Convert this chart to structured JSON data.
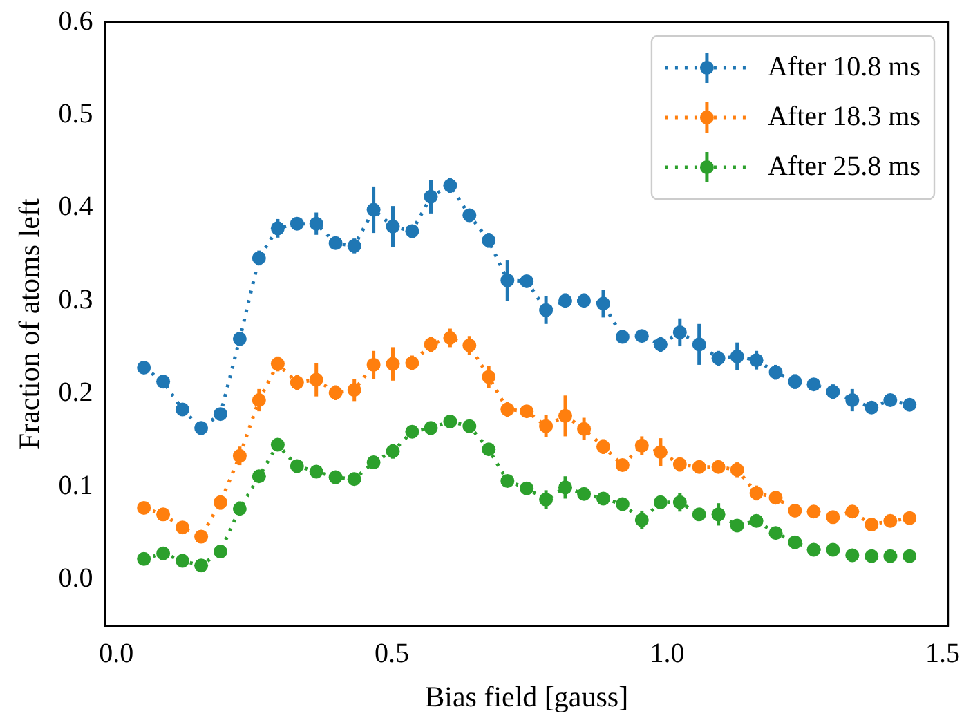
{
  "chart_data": {
    "type": "line",
    "xlabel": "Bias field [gauss]",
    "ylabel": "Fraction of atoms left",
    "xlim": [
      -0.02,
      1.51
    ],
    "xticks": [
      {
        "value": 0,
        "label": "0.0"
      },
      0.5,
      {
        "value": 1,
        "label": "1.0"
      },
      1.5
    ],
    "ylim": [
      -0.05,
      0.6
    ],
    "yticks": [
      {
        "value": 0,
        "label": "0.0"
      },
      0.1,
      0.2,
      0.3,
      0.4,
      0.5,
      0.6
    ],
    "grid": false,
    "legend": "top right",
    "marker": "circle",
    "line_style": "dotted",
    "x": [
      0.05,
      0.085,
      0.12,
      0.154,
      0.189,
      0.224,
      0.259,
      0.293,
      0.328,
      0.363,
      0.398,
      0.432,
      0.467,
      0.502,
      0.537,
      0.571,
      0.606,
      0.641,
      0.676,
      0.71,
      0.745,
      0.78,
      0.815,
      0.849,
      0.884,
      0.919,
      0.954,
      0.988,
      1.023,
      1.058,
      1.093,
      1.127,
      1.162,
      1.197,
      1.232,
      1.266,
      1.301,
      1.336,
      1.371,
      1.405,
      1.44
    ],
    "series": [
      {
        "name": "After 10.8 ms",
        "color": "#1f77b4",
        "values": [
          0.228,
          0.213,
          0.183,
          0.163,
          0.178,
          0.259,
          0.346,
          0.378,
          0.383,
          0.383,
          0.362,
          0.359,
          0.398,
          0.38,
          0.375,
          0.412,
          0.424,
          0.392,
          0.365,
          0.322,
          0.321,
          0.29,
          0.3,
          0.3,
          0.297,
          0.261,
          0.262,
          0.253,
          0.266,
          0.253,
          0.238,
          0.24,
          0.236,
          0.223,
          0.213,
          0.21,
          0.202,
          0.193,
          0.185,
          0.193,
          0.188
        ],
        "errors": [
          null,
          null,
          null,
          null,
          null,
          null,
          0.008,
          0.01,
          0.005,
          0.012,
          null,
          0.008,
          0.025,
          0.022,
          null,
          0.018,
          0.008,
          null,
          0.008,
          0.022,
          null,
          0.015,
          0.008,
          0.008,
          0.015,
          null,
          null,
          0.008,
          0.015,
          0.022,
          0.008,
          0.015,
          0.01,
          0.008,
          0.008,
          null,
          0.008,
          0.012,
          null,
          null,
          null
        ]
      },
      {
        "name": "After 18.3 ms",
        "color": "#ff7f0e",
        "values": [
          0.077,
          0.07,
          0.056,
          0.046,
          0.083,
          0.133,
          0.193,
          0.232,
          0.212,
          0.215,
          0.201,
          0.204,
          0.231,
          0.232,
          0.233,
          0.253,
          0.26,
          0.252,
          0.218,
          0.183,
          0.181,
          0.165,
          0.176,
          0.162,
          0.143,
          0.123,
          0.144,
          0.137,
          0.124,
          0.121,
          0.121,
          0.118,
          0.093,
          0.088,
          0.074,
          0.073,
          0.067,
          0.073,
          0.059,
          0.063,
          0.066
        ],
        "errors": [
          null,
          null,
          null,
          null,
          0.008,
          0.01,
          0.012,
          0.008,
          0.008,
          0.018,
          0.008,
          0.012,
          0.015,
          0.018,
          0.008,
          0.008,
          0.01,
          0.01,
          0.012,
          0.008,
          null,
          0.012,
          0.022,
          0.012,
          0.008,
          null,
          0.01,
          0.015,
          0.008,
          null,
          null,
          0.008,
          0.008,
          null,
          null,
          null,
          null,
          null,
          null,
          null,
          null
        ]
      },
      {
        "name": "After 25.8 ms",
        "color": "#2ca02c",
        "values": [
          0.022,
          0.028,
          0.02,
          0.015,
          0.03,
          0.076,
          0.111,
          0.145,
          0.122,
          0.116,
          0.11,
          0.108,
          0.126,
          0.138,
          0.159,
          0.163,
          0.17,
          0.165,
          0.14,
          0.106,
          0.098,
          0.086,
          0.099,
          0.092,
          0.087,
          0.081,
          0.064,
          0.083,
          0.083,
          0.07,
          0.07,
          0.058,
          0.063,
          0.05,
          0.04,
          0.032,
          0.032,
          0.026,
          0.025,
          0.025,
          0.025
        ],
        "errors": [
          null,
          null,
          0.006,
          null,
          0.006,
          0.008,
          0.006,
          0.006,
          0.006,
          null,
          null,
          null,
          0.006,
          0.008,
          null,
          null,
          0.006,
          null,
          0.006,
          0.006,
          null,
          0.01,
          0.012,
          0.006,
          0.006,
          null,
          0.01,
          0.006,
          0.01,
          null,
          0.012,
          0.006,
          null,
          0.006,
          null,
          null,
          null,
          null,
          null,
          null,
          null
        ]
      }
    ]
  }
}
